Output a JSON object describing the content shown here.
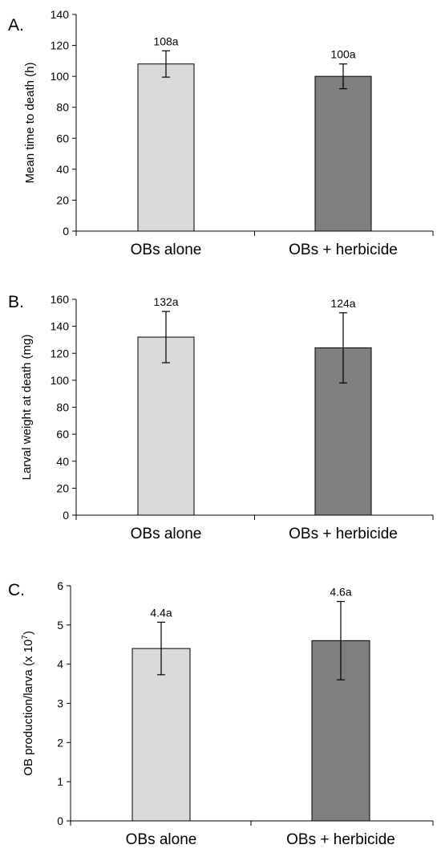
{
  "chart_data": [
    {
      "type": "bar",
      "panel_label": "A.",
      "ylabel": "Mean time to death (h)",
      "categories": [
        "OBs alone",
        "OBs + herbicide"
      ],
      "values": [
        108,
        100
      ],
      "errors": [
        8.5,
        8
      ],
      "data_labels": [
        "108a",
        "100a"
      ],
      "yticks": [
        "0",
        "20",
        "40",
        "60",
        "80",
        "100",
        "120",
        "140"
      ],
      "ylim": [
        0,
        140
      ],
      "bar_colors": [
        "#d9d9d9",
        "#7f7f7f"
      ]
    },
    {
      "type": "bar",
      "panel_label": "B.",
      "ylabel": "Larval weight at death (mg)",
      "categories": [
        "OBs alone",
        "OBs + herbicide"
      ],
      "values": [
        132,
        124
      ],
      "errors": [
        19,
        26
      ],
      "data_labels": [
        "132a",
        "124a"
      ],
      "yticks": [
        "0",
        "20",
        "40",
        "60",
        "80",
        "100",
        "120",
        "140",
        "160"
      ],
      "ylim": [
        0,
        160
      ],
      "bar_colors": [
        "#d9d9d9",
        "#7f7f7f"
      ]
    },
    {
      "type": "bar",
      "panel_label": "C.",
      "ylabel": "OB production/larva (x 10",
      "ylabel_sup": "7",
      "ylabel_end": ")",
      "categories": [
        "OBs alone",
        "OBs + herbicide"
      ],
      "values": [
        4.4,
        4.6
      ],
      "errors": [
        0.67,
        1.0
      ],
      "data_labels": [
        "4.4a",
        "4.6a"
      ],
      "yticks": [
        "0",
        "1",
        "2",
        "3",
        "4",
        "5",
        "6"
      ],
      "ylim": [
        0,
        6
      ],
      "bar_colors": [
        "#d9d9d9",
        "#7f7f7f"
      ]
    }
  ]
}
